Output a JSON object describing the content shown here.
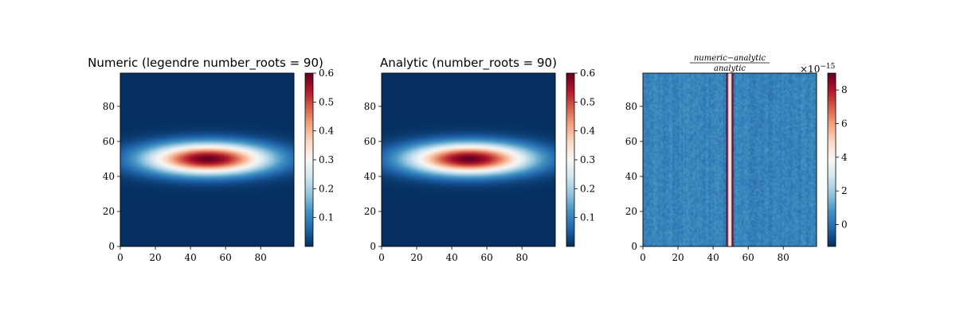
{
  "chart_data": [
    {
      "type": "heatmap",
      "title": "Numeric (legendre number_roots = 90)",
      "xlim": [
        0,
        99
      ],
      "ylim": [
        0,
        99
      ],
      "xticks": [
        "0",
        "20",
        "40",
        "60",
        "80"
      ],
      "yticks": [
        "0",
        "20",
        "40",
        "60",
        "80"
      ],
      "colormap": "RdBu_r",
      "field": {
        "peak_value": 0.6,
        "peak_at": [
          50,
          50
        ],
        "min_value": 0.0
      },
      "colorbar": {
        "range": [
          0.0,
          0.6
        ],
        "ticks": [
          "0.1",
          "0.2",
          "0.3",
          "0.4",
          "0.5",
          "0.6"
        ]
      }
    },
    {
      "type": "heatmap",
      "title": "Analytic (number_roots = 90)",
      "xlim": [
        0,
        99
      ],
      "ylim": [
        0,
        99
      ],
      "xticks": [
        "0",
        "20",
        "40",
        "60",
        "80"
      ],
      "yticks": [
        "0",
        "20",
        "40",
        "60",
        "80"
      ],
      "colormap": "RdBu_r",
      "field": {
        "peak_value": 0.6,
        "peak_at": [
          50,
          50
        ],
        "min_value": 0.0
      },
      "colorbar": {
        "range": [
          0.0,
          0.6
        ],
        "ticks": [
          "0.1",
          "0.2",
          "0.3",
          "0.4",
          "0.5",
          "0.6"
        ]
      }
    },
    {
      "type": "heatmap",
      "title_numerator": "numeric−analytic",
      "title_denominator": "analytic",
      "xlim": [
        0,
        99
      ],
      "ylim": [
        0,
        99
      ],
      "xticks": [
        "0",
        "20",
        "40",
        "60",
        "80"
      ],
      "yticks": [
        "0",
        "20",
        "40",
        "60",
        "80"
      ],
      "colormap": "RdBu_r",
      "field": {
        "background_value": 0.4,
        "noise": 0.6,
        "spike_columns": [
          48,
          49,
          50,
          51
        ],
        "spike_value": 9.0
      },
      "colorbar": {
        "range": [
          -1.3,
          9.0
        ],
        "ticks": [
          "0",
          "2",
          "4",
          "6",
          "8"
        ],
        "multiplier": "×10",
        "exponent": "−15"
      }
    }
  ],
  "colors": {
    "cmap_stops": [
      "#053061",
      "#2166ac",
      "#4393c3",
      "#92c5de",
      "#d1e5f0",
      "#f7f7f7",
      "#fddbc7",
      "#f4a582",
      "#d6604d",
      "#b2182b",
      "#67001f"
    ]
  }
}
